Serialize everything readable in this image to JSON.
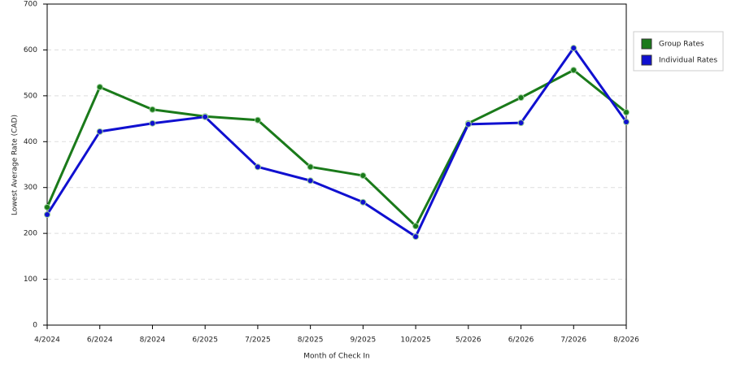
{
  "chart_data": {
    "type": "line",
    "x_label": "Month of Check In",
    "y_label": "Lowest Average Rate (CAD)",
    "categories": [
      "4/2024",
      "6/2024",
      "8/2024",
      "6/2025",
      "7/2025",
      "8/2025",
      "9/2025",
      "10/2025",
      "5/2026",
      "6/2026",
      "7/2026",
      "8/2026"
    ],
    "series": [
      {
        "name": "Group Rates",
        "color": "#1a7a1a",
        "values": [
          257,
          519,
          470,
          455,
          447,
          345,
          326,
          216,
          440,
          496,
          556,
          464
        ]
      },
      {
        "name": "Individual Rates",
        "color": "#1010d0",
        "values": [
          241,
          422,
          440,
          454,
          345,
          315,
          268,
          193,
          438,
          441,
          604,
          443
        ]
      }
    ],
    "ylim": [
      0,
      700
    ],
    "yticks": [
      0,
      100,
      200,
      300,
      400,
      500,
      600,
      700
    ],
    "grid": true,
    "legend": "right"
  }
}
